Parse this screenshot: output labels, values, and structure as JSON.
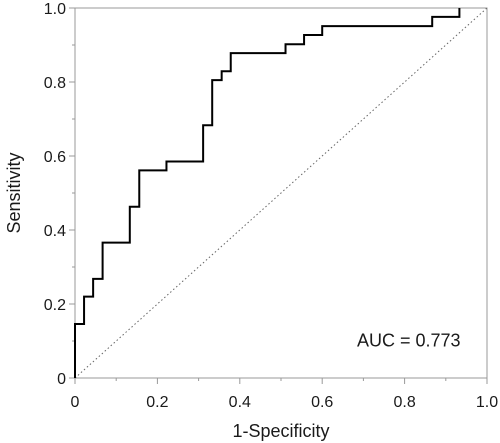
{
  "chart_data": {
    "type": "line",
    "title": "",
    "xlabel": "1-Specificity",
    "ylabel": "Sensitivity",
    "xlim": [
      0,
      1.0
    ],
    "ylim": [
      0,
      1.0
    ],
    "x_ticks": [
      0,
      0.2,
      0.4,
      0.6,
      0.8,
      1.0
    ],
    "y_ticks": [
      0,
      0.2,
      0.4,
      0.6,
      0.8,
      1.0
    ],
    "x_tick_labels": [
      "0",
      "0.2",
      "0.4",
      "0.6",
      "0.8",
      "1.0"
    ],
    "y_tick_labels": [
      "0",
      "0.2",
      "0.4",
      "0.6",
      "0.8",
      "1.0"
    ],
    "grid": false,
    "annotation": "AUC = 0.773",
    "series": [
      {
        "style": "step",
        "color": "#000000",
        "x": [
          0.0,
          0.0,
          0.022,
          0.022,
          0.044,
          0.044,
          0.067,
          0.067,
          0.133,
          0.133,
          0.156,
          0.156,
          0.222,
          0.222,
          0.311,
          0.311,
          0.333,
          0.333,
          0.356,
          0.356,
          0.378,
          0.378,
          0.511,
          0.511,
          0.556,
          0.556,
          0.6,
          0.6,
          0.867,
          0.867,
          0.933,
          0.933
        ],
        "y": [
          0.0,
          0.146,
          0.146,
          0.22,
          0.22,
          0.268,
          0.268,
          0.366,
          0.366,
          0.463,
          0.463,
          0.561,
          0.561,
          0.585,
          0.585,
          0.683,
          0.683,
          0.805,
          0.805,
          0.829,
          0.829,
          0.878,
          0.878,
          0.902,
          0.902,
          0.927,
          0.927,
          0.951,
          0.951,
          0.976,
          0.976,
          1.0
        ]
      }
    ],
    "reference_line": {
      "x": [
        0,
        1
      ],
      "y": [
        0,
        1
      ],
      "style": "dotted",
      "color": "#666666"
    }
  }
}
